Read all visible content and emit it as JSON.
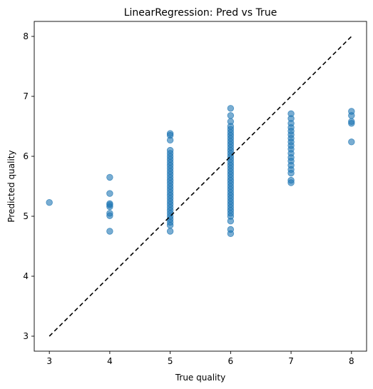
{
  "chart_data": {
    "type": "scatter",
    "title": "LinearRegression: Pred vs True",
    "xlabel": "True quality",
    "ylabel": "Predicted quality",
    "xlim": [
      2.75,
      8.25
    ],
    "ylim": [
      2.75,
      8.25
    ],
    "xticks": [
      3,
      4,
      5,
      6,
      7,
      8
    ],
    "yticks": [
      3,
      4,
      5,
      6,
      7,
      8
    ],
    "grid": false,
    "point_color": "#1f77b4",
    "reference_line": {
      "style": "dashed",
      "color": "#000000",
      "from": [
        3,
        3
      ],
      "to": [
        8,
        8
      ]
    },
    "points": [
      [
        3,
        5.23
      ],
      [
        4,
        5.65
      ],
      [
        4,
        5.38
      ],
      [
        4,
        5.21
      ],
      [
        4,
        5.19
      ],
      [
        4,
        5.16
      ],
      [
        4,
        5.05
      ],
      [
        4,
        5.01
      ],
      [
        4,
        4.75
      ],
      [
        5,
        6.38
      ],
      [
        5,
        6.35
      ],
      [
        5,
        6.27
      ],
      [
        5,
        6.1
      ],
      [
        5,
        6.05
      ],
      [
        5,
        6.0
      ],
      [
        5,
        5.95
      ],
      [
        5,
        5.9
      ],
      [
        5,
        5.85
      ],
      [
        5,
        5.8
      ],
      [
        5,
        5.75
      ],
      [
        5,
        5.7
      ],
      [
        5,
        5.65
      ],
      [
        5,
        5.6
      ],
      [
        5,
        5.55
      ],
      [
        5,
        5.5
      ],
      [
        5,
        5.45
      ],
      [
        5,
        5.4
      ],
      [
        5,
        5.35
      ],
      [
        5,
        5.3
      ],
      [
        5,
        5.25
      ],
      [
        5,
        5.2
      ],
      [
        5,
        5.15
      ],
      [
        5,
        5.1
      ],
      [
        5,
        5.05
      ],
      [
        5,
        5.0
      ],
      [
        5,
        4.95
      ],
      [
        5,
        4.9
      ],
      [
        5,
        4.85
      ],
      [
        5,
        4.75
      ],
      [
        6,
        6.8
      ],
      [
        6,
        6.68
      ],
      [
        6,
        6.58
      ],
      [
        6,
        6.5
      ],
      [
        6,
        6.45
      ],
      [
        6,
        6.4
      ],
      [
        6,
        6.35
      ],
      [
        6,
        6.3
      ],
      [
        6,
        6.25
      ],
      [
        6,
        6.2
      ],
      [
        6,
        6.15
      ],
      [
        6,
        6.1
      ],
      [
        6,
        6.05
      ],
      [
        6,
        6.0
      ],
      [
        6,
        5.95
      ],
      [
        6,
        5.9
      ],
      [
        6,
        5.85
      ],
      [
        6,
        5.8
      ],
      [
        6,
        5.75
      ],
      [
        6,
        5.7
      ],
      [
        6,
        5.65
      ],
      [
        6,
        5.6
      ],
      [
        6,
        5.55
      ],
      [
        6,
        5.5
      ],
      [
        6,
        5.45
      ],
      [
        6,
        5.4
      ],
      [
        6,
        5.35
      ],
      [
        6,
        5.3
      ],
      [
        6,
        5.25
      ],
      [
        6,
        5.2
      ],
      [
        6,
        5.15
      ],
      [
        6,
        5.1
      ],
      [
        6,
        5.05
      ],
      [
        6,
        5.0
      ],
      [
        6,
        4.92
      ],
      [
        6,
        4.78
      ],
      [
        6,
        4.71
      ],
      [
        7,
        6.71
      ],
      [
        7,
        6.63
      ],
      [
        7,
        6.55
      ],
      [
        7,
        6.48
      ],
      [
        7,
        6.42
      ],
      [
        7,
        6.36
      ],
      [
        7,
        6.3
      ],
      [
        7,
        6.24
      ],
      [
        7,
        6.18
      ],
      [
        7,
        6.12
      ],
      [
        7,
        6.05
      ],
      [
        7,
        5.98
      ],
      [
        7,
        5.92
      ],
      [
        7,
        5.85
      ],
      [
        7,
        5.78
      ],
      [
        7,
        5.72
      ],
      [
        7,
        5.6
      ],
      [
        7,
        5.56
      ],
      [
        8,
        6.75
      ],
      [
        8,
        6.68
      ],
      [
        8,
        6.58
      ],
      [
        8,
        6.55
      ],
      [
        8,
        6.24
      ]
    ]
  }
}
